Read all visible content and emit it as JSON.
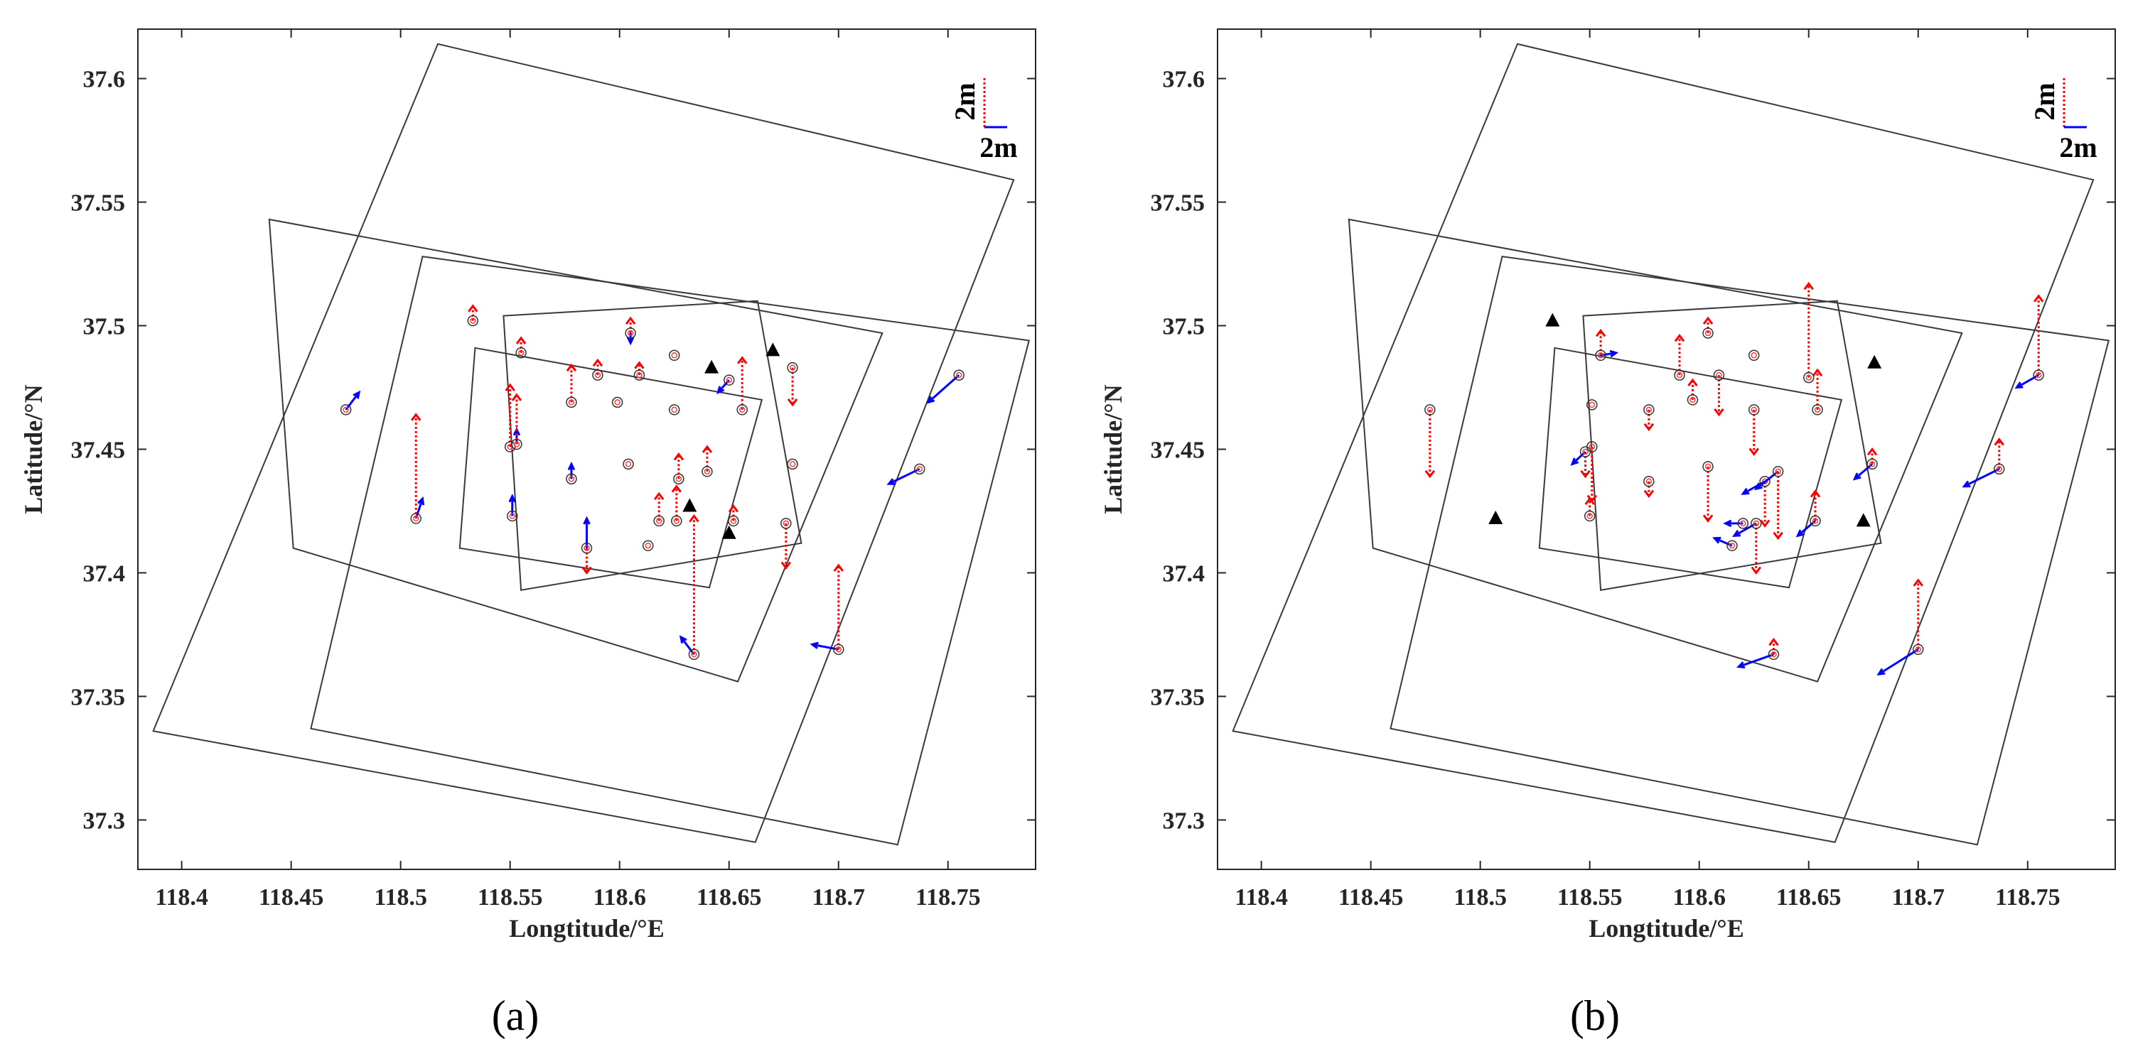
{
  "figure": {
    "panel_labels": [
      "(a)",
      "(b)"
    ]
  },
  "chart_data": [
    {
      "type": "scatter",
      "panel": "(a)",
      "title": "",
      "xlabel": "Longtitude/°E",
      "ylabel": "Latitude/°N",
      "xlim": [
        118.38,
        118.79
      ],
      "ylim": [
        37.28,
        37.62
      ],
      "xticks": [
        118.4,
        118.45,
        118.5,
        118.55,
        118.6,
        118.65,
        118.7,
        118.75
      ],
      "xtick_labels": [
        "118.4",
        "118.45",
        "118.5",
        "118.55",
        "118.6",
        "118.65",
        "118.7",
        "118.75"
      ],
      "yticks": [
        37.3,
        37.35,
        37.4,
        37.45,
        37.5,
        37.55,
        37.6
      ],
      "ytick_labels": [
        "37.3",
        "37.35",
        "37.4",
        "37.45",
        "37.5",
        "37.55",
        "37.6"
      ],
      "legend": {
        "vertical_label": "2m",
        "horizontal_label": "2m",
        "placement": "top-right"
      },
      "frames": [
        {
          "name": "large-frame-1",
          "corners": [
            [
              118.517,
              37.614
            ],
            [
              118.78,
              37.559
            ],
            [
              118.662,
              37.291
            ],
            [
              118.387,
              37.336
            ]
          ]
        },
        {
          "name": "large-frame-2",
          "corners": [
            [
              118.44,
              37.543
            ],
            [
              118.72,
              37.497
            ],
            [
              118.654,
              37.356
            ],
            [
              118.451,
              37.41
            ]
          ]
        },
        {
          "name": "large-frame-3",
          "corners": [
            [
              118.51,
              37.528
            ],
            [
              118.787,
              37.494
            ],
            [
              118.727,
              37.29
            ],
            [
              118.459,
              37.337
            ]
          ]
        },
        {
          "name": "small-frame-1",
          "corners": [
            [
              118.534,
              37.491
            ],
            [
              118.665,
              37.47
            ],
            [
              118.641,
              37.394
            ],
            [
              118.527,
              37.41
            ]
          ]
        },
        {
          "name": "small-frame-2",
          "corners": [
            [
              118.547,
              37.504
            ],
            [
              118.663,
              37.51
            ],
            [
              118.683,
              37.412
            ],
            [
              118.555,
              37.393
            ]
          ]
        }
      ],
      "stations": [
        {
          "lon": 118.475,
          "lat": 37.466,
          "dx": 0.006,
          "dy": 0.007,
          "dz": 0.0
        },
        {
          "lon": 118.507,
          "lat": 37.422,
          "dx": 0.003,
          "dy": 0.008,
          "dz": 0.042
        },
        {
          "lon": 118.533,
          "lat": 37.502,
          "dx": 0.0,
          "dy": 0.0,
          "dz": 0.006
        },
        {
          "lon": 118.55,
          "lat": 37.451,
          "dx": 0.0,
          "dy": 0.0,
          "dz": 0.025
        },
        {
          "lon": 118.553,
          "lat": 37.452,
          "dx": 0.0,
          "dy": 0.006,
          "dz": 0.02
        },
        {
          "lon": 118.551,
          "lat": 37.423,
          "dx": 0.0,
          "dy": 0.008,
          "dz": 0.0
        },
        {
          "lon": 118.555,
          "lat": 37.489,
          "dx": 0.0,
          "dy": 0.0,
          "dz": 0.006
        },
        {
          "lon": 118.578,
          "lat": 37.469,
          "dx": 0.0,
          "dy": 0.0,
          "dz": 0.015
        },
        {
          "lon": 118.578,
          "lat": 37.438,
          "dx": 0.0,
          "dy": 0.006,
          "dz": 0.0
        },
        {
          "lon": 118.59,
          "lat": 37.48,
          "dx": 0.0,
          "dy": 0.0,
          "dz": 0.006
        },
        {
          "lon": 118.585,
          "lat": 37.41,
          "dx": 0.0,
          "dy": 0.012,
          "dz": -0.01
        },
        {
          "lon": 118.599,
          "lat": 37.469,
          "dx": 0.0,
          "dy": 0.0,
          "dz": 0.0
        },
        {
          "lon": 118.605,
          "lat": 37.497,
          "dx": 0.0,
          "dy": -0.004,
          "dz": 0.006
        },
        {
          "lon": 118.604,
          "lat": 37.444,
          "dx": 0.0,
          "dy": 0.0,
          "dz": 0.0
        },
        {
          "lon": 118.609,
          "lat": 37.48,
          "dx": 0.0,
          "dy": 0.0,
          "dz": 0.005
        },
        {
          "lon": 118.613,
          "lat": 37.411,
          "dx": 0.0,
          "dy": 0.0,
          "dz": 0.0
        },
        {
          "lon": 118.618,
          "lat": 37.421,
          "dx": 0.0,
          "dy": 0.0,
          "dz": 0.011
        },
        {
          "lon": 118.625,
          "lat": 37.488,
          "dx": 0.0,
          "dy": 0.0,
          "dz": 0.0
        },
        {
          "lon": 118.625,
          "lat": 37.466,
          "dx": 0.0,
          "dy": 0.0,
          "dz": 0.0
        },
        {
          "lon": 118.626,
          "lat": 37.421,
          "dx": 0.0,
          "dy": 0.0,
          "dz": 0.014
        },
        {
          "lon": 118.627,
          "lat": 37.438,
          "dx": 0.0,
          "dy": 0.0,
          "dz": 0.01
        },
        {
          "lon": 118.634,
          "lat": 37.367,
          "dx": -0.006,
          "dy": 0.007,
          "dz": 0.056
        },
        {
          "lon": 118.64,
          "lat": 37.441,
          "dx": 0.0,
          "dy": 0.0,
          "dz": 0.01
        },
        {
          "lon": 118.65,
          "lat": 37.478,
          "dx": -0.005,
          "dy": -0.005,
          "dz": 0.0
        },
        {
          "lon": 118.656,
          "lat": 37.466,
          "dx": 0.0,
          "dy": 0.0,
          "dz": 0.021
        },
        {
          "lon": 118.652,
          "lat": 37.421,
          "dx": 0.0,
          "dy": 0.0,
          "dz": 0.006
        },
        {
          "lon": 118.676,
          "lat": 37.42,
          "dx": 0.0,
          "dy": 0.0,
          "dz": -0.018
        },
        {
          "lon": 118.679,
          "lat": 37.483,
          "dx": 0.0,
          "dy": 0.0,
          "dz": -0.015
        },
        {
          "lon": 118.679,
          "lat": 37.444,
          "dx": 0.0,
          "dy": 0.0,
          "dz": 0.0
        },
        {
          "lon": 118.7,
          "lat": 37.369,
          "dx": -0.012,
          "dy": 0.002,
          "dz": 0.034
        },
        {
          "lon": 118.737,
          "lat": 37.442,
          "dx": -0.014,
          "dy": -0.006,
          "dz": 0.0
        },
        {
          "lon": 118.755,
          "lat": 37.48,
          "dx": -0.014,
          "dy": -0.011,
          "dz": 0.0
        }
      ],
      "triangles": [
        {
          "lon": 118.642,
          "lat": 37.483
        },
        {
          "lon": 118.67,
          "lat": 37.49
        },
        {
          "lon": 118.632,
          "lat": 37.427
        },
        {
          "lon": 118.65,
          "lat": 37.416
        }
      ]
    },
    {
      "type": "scatter",
      "panel": "(b)",
      "title": "",
      "xlabel": "Longtitude/°E",
      "ylabel": "Latitude/°N",
      "xlim": [
        118.38,
        118.79
      ],
      "ylim": [
        37.28,
        37.62
      ],
      "xticks": [
        118.4,
        118.45,
        118.5,
        118.55,
        118.6,
        118.65,
        118.7,
        118.75
      ],
      "xtick_labels": [
        "118.4",
        "118.45",
        "118.5",
        "118.55",
        "118.6",
        "118.65",
        "118.7",
        "118.75"
      ],
      "yticks": [
        37.3,
        37.35,
        37.4,
        37.45,
        37.5,
        37.55,
        37.6
      ],
      "ytick_labels": [
        "37.3",
        "37.35",
        "37.4",
        "37.45",
        "37.5",
        "37.55",
        "37.6"
      ],
      "legend": {
        "vertical_label": "2m",
        "horizontal_label": "2m",
        "placement": "top-right"
      },
      "frames": [
        {
          "name": "large-frame-1",
          "corners": [
            [
              118.517,
              37.614
            ],
            [
              118.78,
              37.559
            ],
            [
              118.662,
              37.291
            ],
            [
              118.387,
              37.336
            ]
          ]
        },
        {
          "name": "large-frame-2",
          "corners": [
            [
              118.44,
              37.543
            ],
            [
              118.72,
              37.497
            ],
            [
              118.654,
              37.356
            ],
            [
              118.451,
              37.41
            ]
          ]
        },
        {
          "name": "large-frame-3",
          "corners": [
            [
              118.51,
              37.528
            ],
            [
              118.787,
              37.494
            ],
            [
              118.727,
              37.29
            ],
            [
              118.459,
              37.337
            ]
          ]
        },
        {
          "name": "small-frame-1",
          "corners": [
            [
              118.534,
              37.491
            ],
            [
              118.665,
              37.47
            ],
            [
              118.641,
              37.394
            ],
            [
              118.527,
              37.41
            ]
          ]
        },
        {
          "name": "small-frame-2",
          "corners": [
            [
              118.547,
              37.504
            ],
            [
              118.663,
              37.51
            ],
            [
              118.683,
              37.412
            ],
            [
              118.555,
              37.393
            ]
          ]
        }
      ],
      "stations": [
        {
          "lon": 118.477,
          "lat": 37.466,
          "dx": 0.0,
          "dy": 0.0,
          "dz": -0.027
        },
        {
          "lon": 118.548,
          "lat": 37.449,
          "dx": -0.006,
          "dy": -0.005,
          "dz": -0.01
        },
        {
          "lon": 118.551,
          "lat": 37.451,
          "dx": 0.0,
          "dy": 0.0,
          "dz": -0.022
        },
        {
          "lon": 118.551,
          "lat": 37.468,
          "dx": 0.0,
          "dy": 0.0,
          "dz": 0.0
        },
        {
          "lon": 118.55,
          "lat": 37.423,
          "dx": 0.0,
          "dy": 0.0,
          "dz": 0.007
        },
        {
          "lon": 118.555,
          "lat": 37.488,
          "dx": 0.007,
          "dy": 0.001,
          "dz": 0.01
        },
        {
          "lon": 118.577,
          "lat": 37.466,
          "dx": 0.0,
          "dy": 0.0,
          "dz": -0.008
        },
        {
          "lon": 118.577,
          "lat": 37.437,
          "dx": 0.0,
          "dy": 0.0,
          "dz": -0.006
        },
        {
          "lon": 118.591,
          "lat": 37.48,
          "dx": 0.0,
          "dy": 0.0,
          "dz": 0.016
        },
        {
          "lon": 118.597,
          "lat": 37.47,
          "dx": 0.0,
          "dy": 0.0,
          "dz": 0.008
        },
        {
          "lon": 118.604,
          "lat": 37.497,
          "dx": 0.0,
          "dy": 0.0,
          "dz": 0.006
        },
        {
          "lon": 118.604,
          "lat": 37.443,
          "dx": 0.0,
          "dy": 0.0,
          "dz": -0.022
        },
        {
          "lon": 118.609,
          "lat": 37.48,
          "dx": 0.0,
          "dy": 0.0,
          "dz": -0.016
        },
        {
          "lon": 118.615,
          "lat": 37.411,
          "dx": -0.008,
          "dy": 0.003,
          "dz": 0.0
        },
        {
          "lon": 118.62,
          "lat": 37.42,
          "dx": -0.008,
          "dy": 0.0,
          "dz": 0.0
        },
        {
          "lon": 118.625,
          "lat": 37.488,
          "dx": 0.0,
          "dy": 0.0,
          "dz": 0.0
        },
        {
          "lon": 118.625,
          "lat": 37.466,
          "dx": 0.0,
          "dy": 0.0,
          "dz": -0.018
        },
        {
          "lon": 118.626,
          "lat": 37.42,
          "dx": -0.01,
          "dy": -0.005,
          "dz": -0.02
        },
        {
          "lon": 118.63,
          "lat": 37.437,
          "dx": -0.01,
          "dy": -0.005,
          "dz": -0.018
        },
        {
          "lon": 118.636,
          "lat": 37.441,
          "dx": -0.01,
          "dy": -0.007,
          "dz": -0.027
        },
        {
          "lon": 118.634,
          "lat": 37.367,
          "dx": -0.016,
          "dy": -0.005,
          "dz": 0.006
        },
        {
          "lon": 118.65,
          "lat": 37.479,
          "dx": 0.0,
          "dy": 0.0,
          "dz": 0.038
        },
        {
          "lon": 118.654,
          "lat": 37.466,
          "dx": 0.0,
          "dy": 0.0,
          "dz": 0.016
        },
        {
          "lon": 118.653,
          "lat": 37.421,
          "dx": -0.008,
          "dy": -0.006,
          "dz": 0.012
        },
        {
          "lon": 118.679,
          "lat": 37.444,
          "dx": -0.008,
          "dy": -0.006,
          "dz": 0.006
        },
        {
          "lon": 118.7,
          "lat": 37.369,
          "dx": -0.018,
          "dy": -0.01,
          "dz": 0.028
        },
        {
          "lon": 118.737,
          "lat": 37.442,
          "dx": -0.016,
          "dy": -0.007,
          "dz": 0.012
        },
        {
          "lon": 118.755,
          "lat": 37.48,
          "dx": -0.01,
          "dy": -0.005,
          "dz": 0.032
        }
      ],
      "triangles": [
        {
          "lon": 118.533,
          "lat": 37.502
        },
        {
          "lon": 118.68,
          "lat": 37.485
        },
        {
          "lon": 118.507,
          "lat": 37.422
        },
        {
          "lon": 118.675,
          "lat": 37.421
        }
      ]
    }
  ]
}
